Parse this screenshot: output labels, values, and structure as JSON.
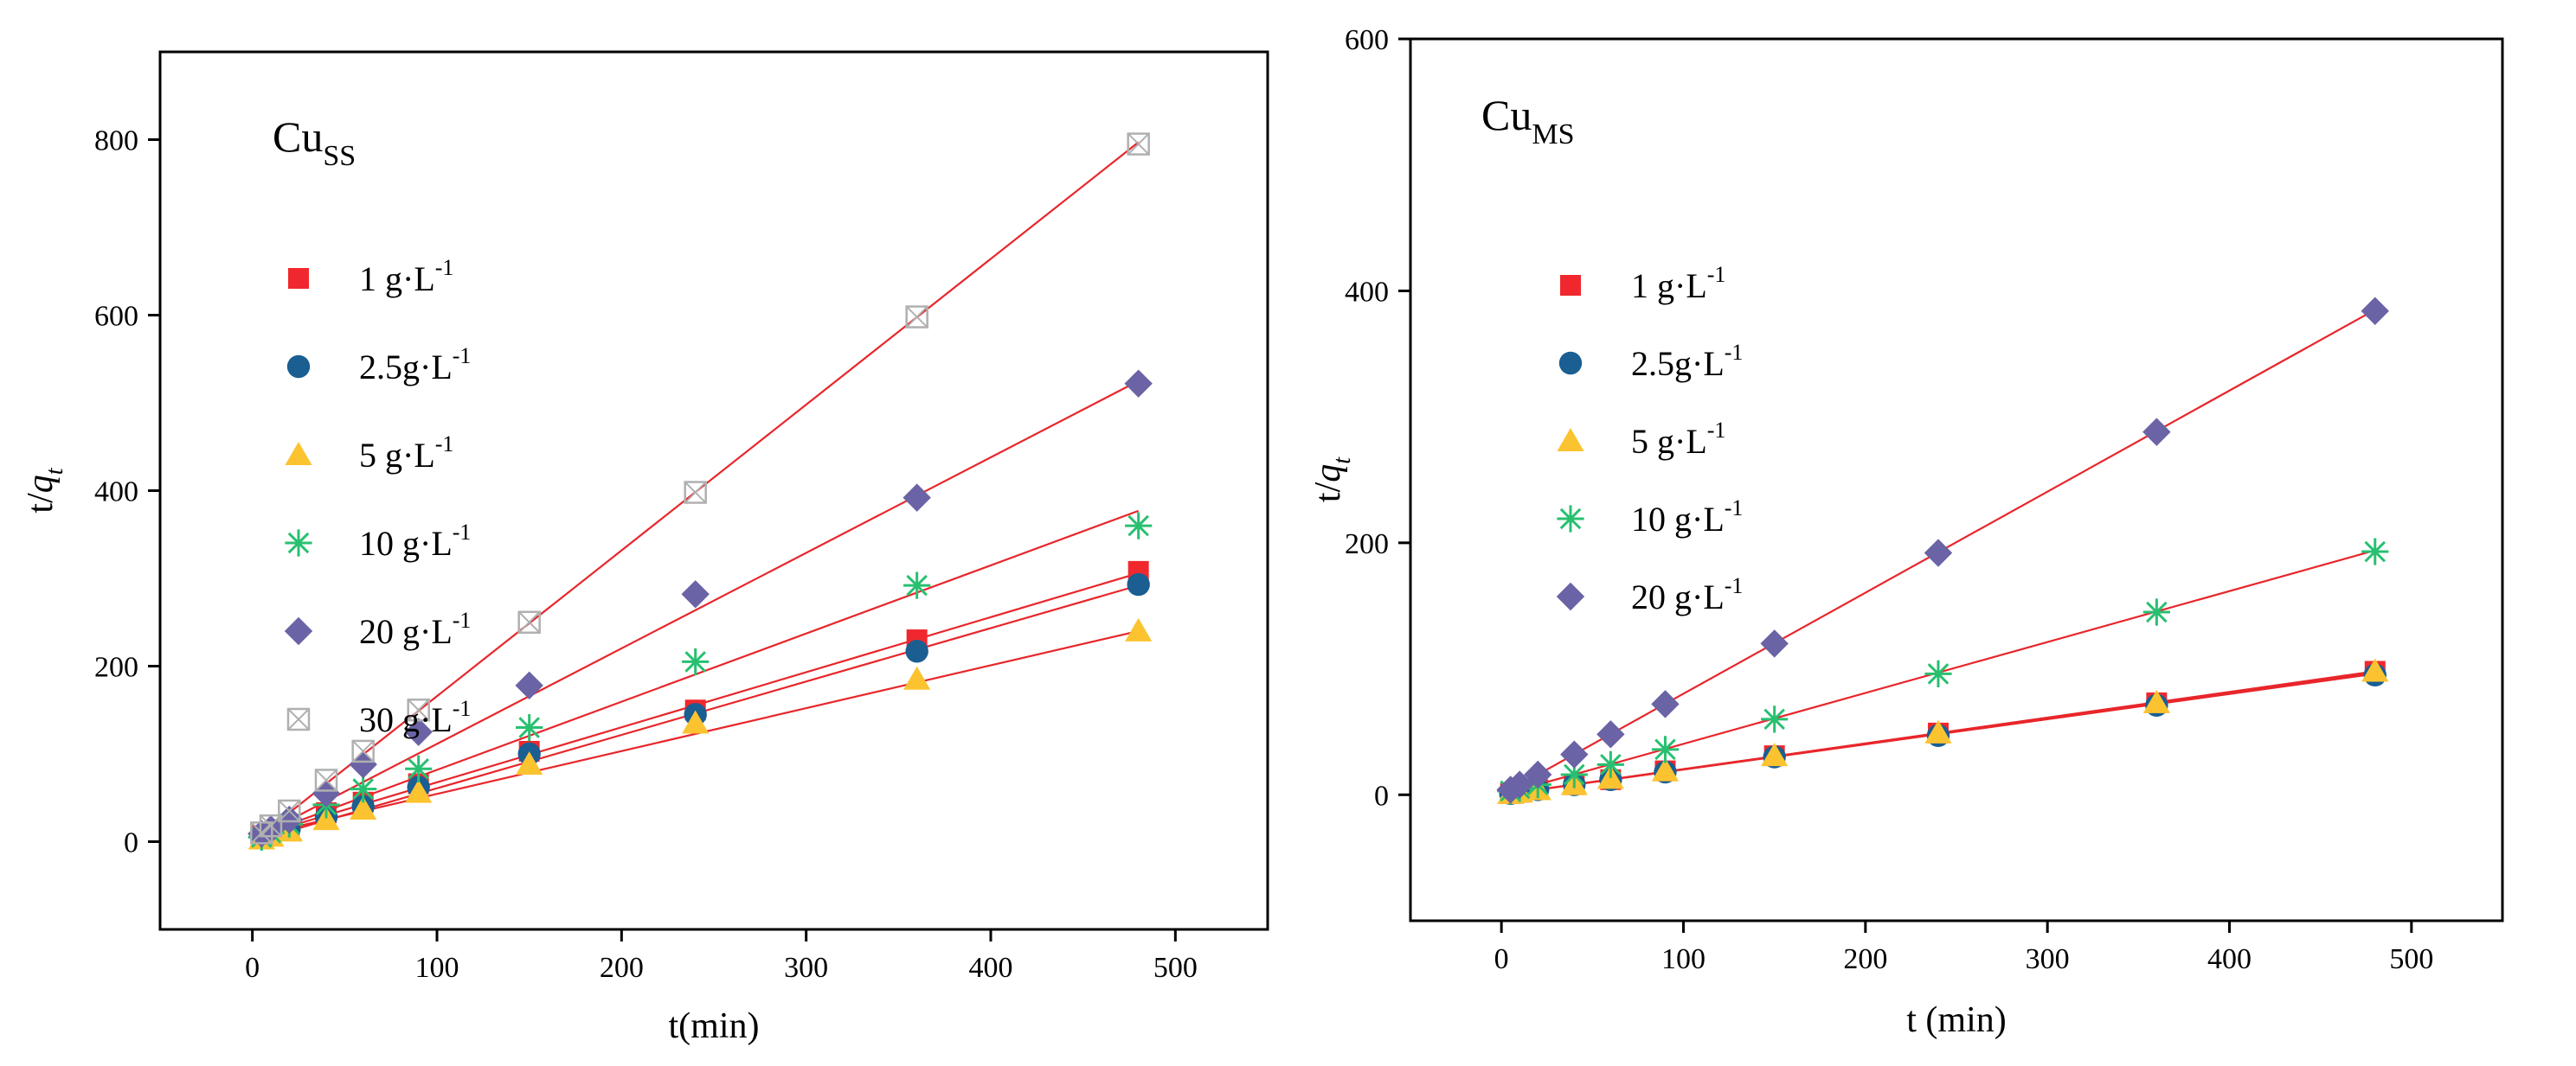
{
  "chart_data": [
    {
      "type": "scatter",
      "title_main": "Cu",
      "title_sub": "SS",
      "xlabel": "t(min)",
      "ylabel_main": "t/",
      "ylabel_q": "q",
      "ylabel_sub": "t",
      "xlim": [
        -50,
        550
      ],
      "ylim": [
        -100,
        900
      ],
      "xticks": [
        0,
        100,
        200,
        300,
        400,
        500
      ],
      "yticks": [
        0,
        200,
        400,
        600,
        800
      ],
      "legend_position": "left",
      "grid": false,
      "series": [
        {
          "name": "1  g·L",
          "sup": "-1",
          "marker": "square",
          "color": "#f0282d",
          "x": [
            5,
            10,
            20,
            40,
            60,
            90,
            150,
            240,
            360,
            480
          ],
          "y": [
            7,
            11,
            18,
            33,
            45,
            66,
            103,
            150,
            230,
            308
          ],
          "fit": [
            [
              5,
              8
            ],
            [
              480,
              306
            ]
          ]
        },
        {
          "name": "2.5g·L",
          "sup": "-1",
          "marker": "circle",
          "color": "#1a5e92",
          "x": [
            5,
            10,
            20,
            40,
            60,
            90,
            150,
            240,
            360,
            480
          ],
          "y": [
            4,
            7,
            14,
            28,
            40,
            62,
            100,
            145,
            217,
            293
          ],
          "fit": [
            [
              5,
              3
            ],
            [
              480,
              292
            ]
          ]
        },
        {
          "name": "5  g·L",
          "sup": "-1",
          "marker": "triangle",
          "color": "#fcc330",
          "x": [
            5,
            10,
            20,
            40,
            60,
            90,
            150,
            240,
            360,
            480
          ],
          "y": [
            3,
            6,
            12,
            25,
            37,
            56,
            88,
            135,
            185,
            240
          ],
          "fit": [
            [
              5,
              8
            ],
            [
              480,
              240
            ]
          ]
        },
        {
          "name": "10 g·L",
          "sup": "-1",
          "marker": "asterisk",
          "color": "#28c070",
          "x": [
            5,
            10,
            20,
            40,
            60,
            90,
            150,
            240,
            360,
            480
          ],
          "y": [
            5,
            10,
            20,
            42,
            60,
            83,
            130,
            205,
            292,
            360
          ],
          "fit": [
            [
              5,
              8
            ],
            [
              480,
              377
            ]
          ]
        },
        {
          "name": "20 g·L",
          "sup": "-1",
          "marker": "diamond",
          "color": "#6a63a5",
          "x": [
            5,
            10,
            20,
            40,
            60,
            90,
            150,
            240,
            360,
            480
          ],
          "y": [
            9,
            14,
            25,
            55,
            88,
            125,
            178,
            282,
            392,
            522
          ],
          "fit": [
            [
              5,
              8
            ],
            [
              480,
              525
            ]
          ]
        },
        {
          "name": "30 g·L",
          "sup": "-1",
          "marker": "crossbox",
          "color": "#b0b0b0",
          "x": [
            5,
            10,
            20,
            40,
            60,
            90,
            150,
            240,
            360,
            480
          ],
          "y": [
            10,
            18,
            35,
            70,
            103,
            150,
            250,
            398,
            598,
            795
          ],
          "fit": [
            [
              5,
              8
            ],
            [
              480,
              797
            ]
          ]
        }
      ]
    },
    {
      "type": "scatter",
      "title_main": "Cu",
      "title_sub": "MS",
      "xlabel": "t (min)",
      "ylabel_main": "t/",
      "ylabel_q": "q",
      "ylabel_sub": "t",
      "xlim": [
        -50,
        550
      ],
      "ylim": [
        -100,
        600
      ],
      "xticks": [
        0,
        100,
        200,
        300,
        400,
        500
      ],
      "yticks": [
        0,
        200,
        400,
        600
      ],
      "legend_position": "left",
      "grid": false,
      "series": [
        {
          "name": "1  g·L",
          "sup": "-1",
          "marker": "square",
          "color": "#f0282d",
          "x": [
            5,
            10,
            20,
            40,
            60,
            90,
            150,
            240,
            360,
            480
          ],
          "y": [
            1,
            2,
            4,
            8,
            12,
            19,
            31,
            49,
            73,
            98
          ],
          "fit": [
            [
              5,
              1
            ],
            [
              480,
              98
            ]
          ]
        },
        {
          "name": "2.5g·L",
          "sup": "-1",
          "marker": "circle",
          "color": "#1a5e92",
          "x": [
            5,
            10,
            20,
            40,
            60,
            90,
            150,
            240,
            360,
            480
          ],
          "y": [
            1,
            2,
            4,
            8,
            12,
            18,
            30,
            47,
            71,
            95
          ],
          "fit": [
            [
              5,
              1
            ],
            [
              480,
              96
            ]
          ]
        },
        {
          "name": "5  g·L",
          "sup": "-1",
          "marker": "triangle",
          "color": "#fcc330",
          "x": [
            5,
            10,
            20,
            40,
            60,
            90,
            150,
            240,
            360,
            480
          ],
          "y": [
            1,
            2,
            4,
            8,
            13,
            19,
            31,
            49,
            73,
            98
          ],
          "fit": [
            [
              5,
              1
            ],
            [
              480,
              97
            ]
          ]
        },
        {
          "name": "10 g·L",
          "sup": "-1",
          "marker": "asterisk",
          "color": "#28c070",
          "x": [
            5,
            10,
            20,
            40,
            60,
            90,
            150,
            240,
            360,
            480
          ],
          "y": [
            3,
            5,
            8,
            16,
            24,
            36,
            60,
            96,
            145,
            193
          ],
          "fit": [
            [
              5,
              2
            ],
            [
              480,
              194
            ]
          ]
        },
        {
          "name": "20 g·L",
          "sup": "-1",
          "marker": "diamond",
          "color": "#6a63a5",
          "x": [
            5,
            10,
            20,
            40,
            60,
            90,
            150,
            240,
            360,
            480
          ],
          "y": [
            4,
            8,
            16,
            32,
            48,
            72,
            120,
            192,
            288,
            384
          ],
          "fit": [
            [
              5,
              4
            ],
            [
              480,
              385
            ]
          ]
        }
      ]
    }
  ]
}
